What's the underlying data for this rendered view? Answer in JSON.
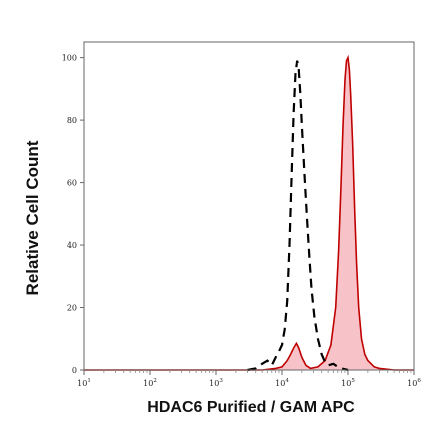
{
  "chart_data": {
    "type": "area",
    "title": "",
    "xlabel": "HDAC6 Purified / GAM APC",
    "ylabel": "Relative Cell Count",
    "x_scale": "log",
    "xlim": [
      10,
      1000000
    ],
    "ylim": [
      0,
      105
    ],
    "x_ticks": [
      {
        "value": 10,
        "base": "10",
        "exp": "1"
      },
      {
        "value": 100,
        "base": "10",
        "exp": "2"
      },
      {
        "value": 1000,
        "base": "10",
        "exp": "3"
      },
      {
        "value": 10000,
        "base": "10",
        "exp": "4"
      },
      {
        "value": 100000,
        "base": "10",
        "exp": "5"
      },
      {
        "value": 1000000,
        "base": "10",
        "exp": "6"
      }
    ],
    "y_ticks": [
      "0",
      "20",
      "40",
      "60",
      "80",
      "100"
    ],
    "grid": false,
    "legend": "none",
    "series": [
      {
        "style": "dashed",
        "color": "#000000",
        "points": [
          [
            3000,
            0
          ],
          [
            4000,
            0.5
          ],
          [
            5000,
            2
          ],
          [
            6000,
            3
          ],
          [
            7000,
            1.5
          ],
          [
            8000,
            4
          ],
          [
            9000,
            6
          ],
          [
            10000,
            8
          ],
          [
            11000,
            13
          ],
          [
            12000,
            22
          ],
          [
            13000,
            40
          ],
          [
            14000,
            62
          ],
          [
            15000,
            82
          ],
          [
            16000,
            95
          ],
          [
            17000,
            99
          ],
          [
            18000,
            96
          ],
          [
            19000,
            88
          ],
          [
            20000,
            78
          ],
          [
            22000,
            62
          ],
          [
            24000,
            48
          ],
          [
            26000,
            36
          ],
          [
            28000,
            26
          ],
          [
            31000,
            17
          ],
          [
            35000,
            10
          ],
          [
            40000,
            5
          ],
          [
            45000,
            2.5
          ],
          [
            50000,
            1.5
          ],
          [
            60000,
            2
          ],
          [
            70000,
            1
          ],
          [
            80000,
            0.5
          ],
          [
            100000,
            0
          ]
        ]
      },
      {
        "style": "filled",
        "color": "#c00000",
        "fill": "#f7b9be",
        "points": [
          [
            10,
            0
          ],
          [
            5000,
            0
          ],
          [
            8000,
            0.5
          ],
          [
            10000,
            1
          ],
          [
            12000,
            3
          ],
          [
            13500,
            5
          ],
          [
            15000,
            7
          ],
          [
            16500,
            8.5
          ],
          [
            18000,
            7
          ],
          [
            20000,
            4
          ],
          [
            23000,
            1.5
          ],
          [
            27000,
            0.5
          ],
          [
            35000,
            1
          ],
          [
            45000,
            3
          ],
          [
            55000,
            8
          ],
          [
            65000,
            20
          ],
          [
            72000,
            38
          ],
          [
            78000,
            58
          ],
          [
            84000,
            78
          ],
          [
            90000,
            93
          ],
          [
            95000,
            99
          ],
          [
            100000,
            100
          ],
          [
            105000,
            96
          ],
          [
            110000,
            88
          ],
          [
            118000,
            72
          ],
          [
            126000,
            52
          ],
          [
            135000,
            34
          ],
          [
            145000,
            20
          ],
          [
            160000,
            10
          ],
          [
            180000,
            5
          ],
          [
            200000,
            3
          ],
          [
            250000,
            1
          ],
          [
            300000,
            0.5
          ],
          [
            500000,
            0
          ],
          [
            1000000,
            0
          ]
        ]
      }
    ]
  }
}
